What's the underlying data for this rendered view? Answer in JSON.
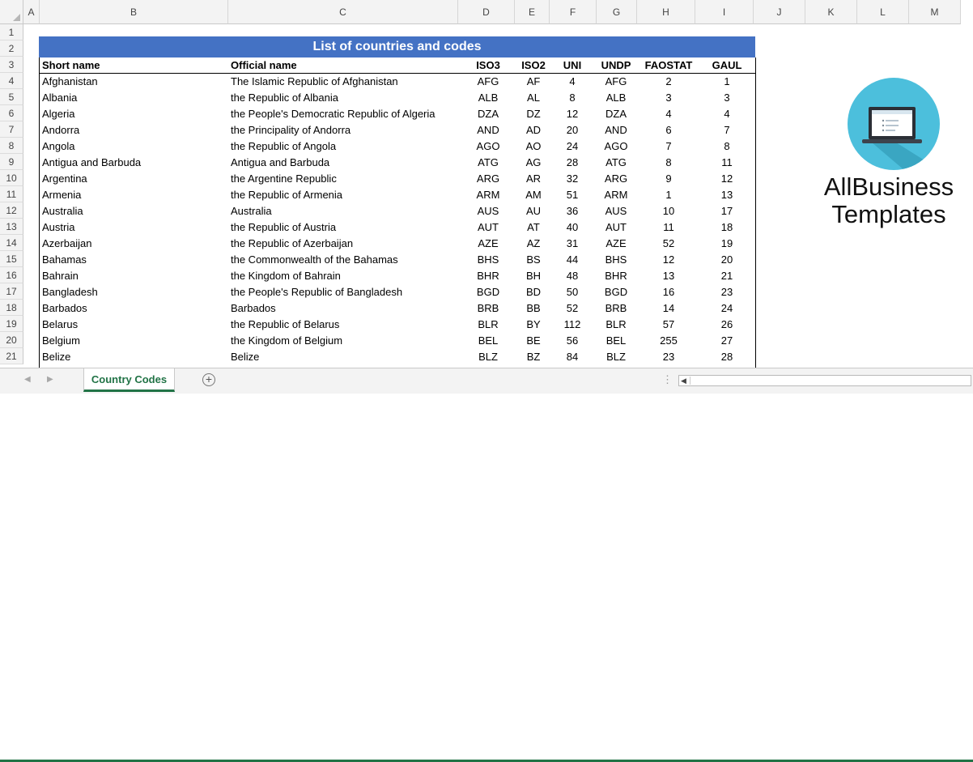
{
  "columns": [
    "A",
    "B",
    "C",
    "D",
    "E",
    "F",
    "G",
    "H",
    "I",
    "J",
    "K",
    "L",
    "M"
  ],
  "row_numbers": [
    "1",
    "2",
    "3",
    "4",
    "5",
    "6",
    "7",
    "8",
    "9",
    "10",
    "11",
    "12",
    "13",
    "14",
    "15",
    "16",
    "17",
    "18",
    "19",
    "20",
    "21"
  ],
  "title": "List of countries and codes",
  "headers": {
    "short": "Short name",
    "official": "Official name",
    "iso3": "ISO3",
    "iso2": "ISO2",
    "uni": "UNI",
    "undp": "UNDP",
    "faostat": "FAOSTAT",
    "gaul": "GAUL"
  },
  "rows": [
    {
      "short": "Afghanistan",
      "official": "The Islamic Republic of Afghanistan",
      "iso3": "AFG",
      "iso2": "AF",
      "uni": "4",
      "undp": "AFG",
      "faostat": "2",
      "gaul": "1"
    },
    {
      "short": "Albania",
      "official": "the Republic of Albania",
      "iso3": "ALB",
      "iso2": "AL",
      "uni": "8",
      "undp": "ALB",
      "faostat": "3",
      "gaul": "3"
    },
    {
      "short": "Algeria",
      "official": "the People's Democratic Republic of Algeria",
      "iso3": "DZA",
      "iso2": "DZ",
      "uni": "12",
      "undp": "DZA",
      "faostat": "4",
      "gaul": "4"
    },
    {
      "short": "Andorra",
      "official": "the Principality of Andorra",
      "iso3": "AND",
      "iso2": "AD",
      "uni": "20",
      "undp": "AND",
      "faostat": "6",
      "gaul": "7"
    },
    {
      "short": "Angola",
      "official": "the Republic of Angola",
      "iso3": "AGO",
      "iso2": "AO",
      "uni": "24",
      "undp": "AGO",
      "faostat": "7",
      "gaul": "8"
    },
    {
      "short": "Antigua and Barbuda",
      "official": "Antigua and Barbuda",
      "iso3": "ATG",
      "iso2": "AG",
      "uni": "28",
      "undp": "ATG",
      "faostat": "8",
      "gaul": "11"
    },
    {
      "short": "Argentina",
      "official": "the Argentine Republic",
      "iso3": "ARG",
      "iso2": "AR",
      "uni": "32",
      "undp": "ARG",
      "faostat": "9",
      "gaul": "12"
    },
    {
      "short": "Armenia",
      "official": "the Republic of Armenia",
      "iso3": "ARM",
      "iso2": "AM",
      "uni": "51",
      "undp": "ARM",
      "faostat": "1",
      "gaul": "13"
    },
    {
      "short": "Australia",
      "official": "Australia",
      "iso3": "AUS",
      "iso2": "AU",
      "uni": "36",
      "undp": "AUS",
      "faostat": "10",
      "gaul": "17"
    },
    {
      "short": "Austria",
      "official": "the Republic of Austria",
      "iso3": "AUT",
      "iso2": "AT",
      "uni": "40",
      "undp": "AUT",
      "faostat": "11",
      "gaul": "18"
    },
    {
      "short": "Azerbaijan",
      "official": "the Republic of Azerbaijan",
      "iso3": "AZE",
      "iso2": "AZ",
      "uni": "31",
      "undp": "AZE",
      "faostat": "52",
      "gaul": "19"
    },
    {
      "short": "Bahamas",
      "official": "the Commonwealth of the Bahamas",
      "iso3": "BHS",
      "iso2": "BS",
      "uni": "44",
      "undp": "BHS",
      "faostat": "12",
      "gaul": "20"
    },
    {
      "short": "Bahrain",
      "official": "the Kingdom of Bahrain",
      "iso3": "BHR",
      "iso2": "BH",
      "uni": "48",
      "undp": "BHR",
      "faostat": "13",
      "gaul": "21"
    },
    {
      "short": "Bangladesh",
      "official": "the People's Republic of Bangladesh",
      "iso3": "BGD",
      "iso2": "BD",
      "uni": "50",
      "undp": "BGD",
      "faostat": "16",
      "gaul": "23"
    },
    {
      "short": "Barbados",
      "official": "Barbados",
      "iso3": "BRB",
      "iso2": "BB",
      "uni": "52",
      "undp": "BRB",
      "faostat": "14",
      "gaul": "24"
    },
    {
      "short": "Belarus",
      "official": "the Republic of Belarus",
      "iso3": "BLR",
      "iso2": "BY",
      "uni": "112",
      "undp": "BLR",
      "faostat": "57",
      "gaul": "26"
    },
    {
      "short": "Belgium",
      "official": "the Kingdom of Belgium",
      "iso3": "BEL",
      "iso2": "BE",
      "uni": "56",
      "undp": "BEL",
      "faostat": "255",
      "gaul": "27"
    },
    {
      "short": "Belize",
      "official": "Belize",
      "iso3": "BLZ",
      "iso2": "BZ",
      "uni": "84",
      "undp": "BLZ",
      "faostat": "23",
      "gaul": "28"
    }
  ],
  "logo": {
    "line1": "AllBusiness",
    "line2": "Templates"
  },
  "sheet_tab": "Country Codes",
  "add_sheet_symbol": "+",
  "colors": {
    "title_bg": "#4472c4",
    "logo_circle": "#4cbfdc",
    "tab_accent": "#217346"
  }
}
